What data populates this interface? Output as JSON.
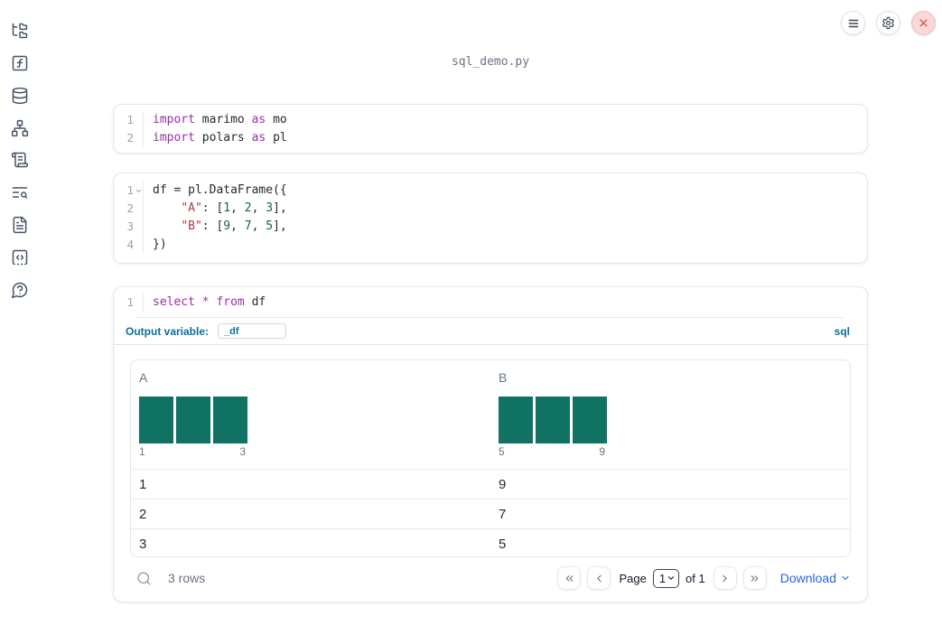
{
  "colors": {
    "keyword": "#9a2fa5",
    "string": "#a93a3f",
    "number": "#116644",
    "histogram_bar": "#0f7263",
    "sql_accent": "#0c6f99",
    "link": "#2563eb",
    "shutdown_red": "#d25353",
    "row_text": "#1f2937"
  },
  "app": {
    "title": "sql_demo.py"
  },
  "topbar": {
    "buttons": [
      {
        "id": "menu",
        "icon": "hamburger-menu-icon"
      },
      {
        "id": "settings",
        "icon": "gear-icon"
      },
      {
        "id": "shutdown",
        "icon": "close-icon"
      }
    ]
  },
  "sidebar": {
    "items": [
      {
        "id": "folder-tree",
        "icon": "folder-tree-icon"
      },
      {
        "id": "function-square",
        "icon": "function-square-icon"
      },
      {
        "id": "database",
        "icon": "database-icon"
      },
      {
        "id": "network",
        "icon": "network-icon"
      },
      {
        "id": "scroll-text",
        "icon": "scroll-text-icon"
      },
      {
        "id": "text-search",
        "icon": "text-search-icon"
      },
      {
        "id": "file-text",
        "icon": "file-text-icon"
      },
      {
        "id": "snippets",
        "icon": "square-dashed-bottom-code-icon"
      },
      {
        "id": "help",
        "icon": "message-circle-question-icon"
      }
    ]
  },
  "cells": [
    {
      "id": "imports",
      "language": "python",
      "lines": [
        {
          "n": "1",
          "fold": false,
          "tokens": [
            [
              "kw",
              "import"
            ],
            [
              "pl",
              " marimo "
            ],
            [
              "kw",
              "as"
            ],
            [
              "pl",
              " mo"
            ]
          ]
        },
        {
          "n": "2",
          "fold": false,
          "tokens": [
            [
              "kw",
              "import"
            ],
            [
              "pl",
              " polars "
            ],
            [
              "kw",
              "as"
            ],
            [
              "pl",
              " pl"
            ]
          ]
        }
      ]
    },
    {
      "id": "dataframe",
      "language": "python",
      "lines": [
        {
          "n": "1",
          "fold": true,
          "tokens": [
            [
              "pl",
              "df = pl.DataFrame({"
            ]
          ]
        },
        {
          "n": "2",
          "fold": false,
          "tokens": [
            [
              "pl",
              "    "
            ],
            [
              "str",
              "\"A\""
            ],
            [
              "pl",
              ": ["
            ],
            [
              "num",
              "1"
            ],
            [
              "pl",
              ", "
            ],
            [
              "num",
              "2"
            ],
            [
              "pl",
              ", "
            ],
            [
              "num",
              "3"
            ],
            [
              "pl",
              "],"
            ]
          ]
        },
        {
          "n": "3",
          "fold": false,
          "tokens": [
            [
              "pl",
              "    "
            ],
            [
              "str",
              "\"B\""
            ],
            [
              "pl",
              ": ["
            ],
            [
              "num",
              "9"
            ],
            [
              "pl",
              ", "
            ],
            [
              "num",
              "7"
            ],
            [
              "pl",
              ", "
            ],
            [
              "num",
              "5"
            ],
            [
              "pl",
              "],"
            ]
          ]
        },
        {
          "n": "4",
          "fold": false,
          "tokens": [
            [
              "pl",
              "})"
            ]
          ]
        }
      ]
    },
    {
      "id": "sql-query",
      "language": "sql",
      "lines": [
        {
          "n": "1",
          "fold": false,
          "tokens": [
            [
              "kw",
              "select"
            ],
            [
              "pl",
              " "
            ],
            [
              "kw",
              "*"
            ],
            [
              "pl",
              " "
            ],
            [
              "kw",
              "from"
            ],
            [
              "pl",
              " df"
            ]
          ]
        }
      ],
      "output_variable_label": "Output variable:",
      "output_variable_value": "_df",
      "language_badge": "sql"
    }
  ],
  "table": {
    "columns": [
      {
        "name": "A",
        "histogram": {
          "type": "bar",
          "bar_heights": [
            1,
            1,
            1
          ],
          "min_label": "1",
          "max_label": "3"
        }
      },
      {
        "name": "B",
        "histogram": {
          "type": "bar",
          "bar_heights": [
            1,
            1,
            1
          ],
          "min_label": "5",
          "max_label": "9"
        }
      }
    ],
    "rows": [
      [
        "1",
        "9"
      ],
      [
        "2",
        "7"
      ],
      [
        "3",
        "5"
      ]
    ],
    "footer": {
      "row_count": "3 rows",
      "page_label": "Page",
      "page_value": "1",
      "page_of": "of 1",
      "download_label": "Download"
    }
  }
}
